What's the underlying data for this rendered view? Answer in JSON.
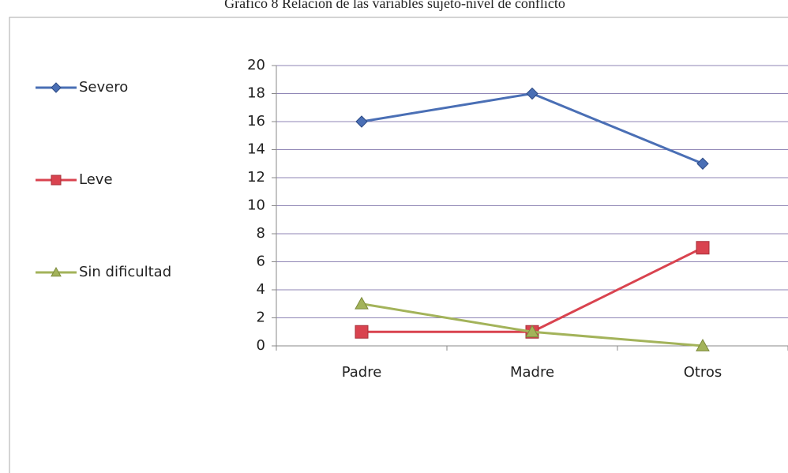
{
  "chart_data": {
    "type": "line",
    "title": "Gráfico 8 Relación de las variables sujeto-nivel de conflicto",
    "categories": [
      "Padre",
      "Madre",
      "Otros"
    ],
    "series": [
      {
        "name": "Severo",
        "color": "#4a6fb5",
        "marker": "diamond",
        "values": [
          16,
          18,
          13
        ]
      },
      {
        "name": "Leve",
        "color": "#d9434f",
        "marker": "square",
        "values": [
          1,
          1,
          7
        ]
      },
      {
        "name": "Sin dificultad",
        "color": "#a3b35a",
        "marker": "triangle",
        "values": [
          3,
          1,
          0
        ]
      }
    ],
    "ylim": [
      0,
      20
    ],
    "yticks": [
      0,
      2,
      4,
      6,
      8,
      10,
      12,
      14,
      16,
      18,
      20
    ],
    "grid": true,
    "legend": "left"
  }
}
